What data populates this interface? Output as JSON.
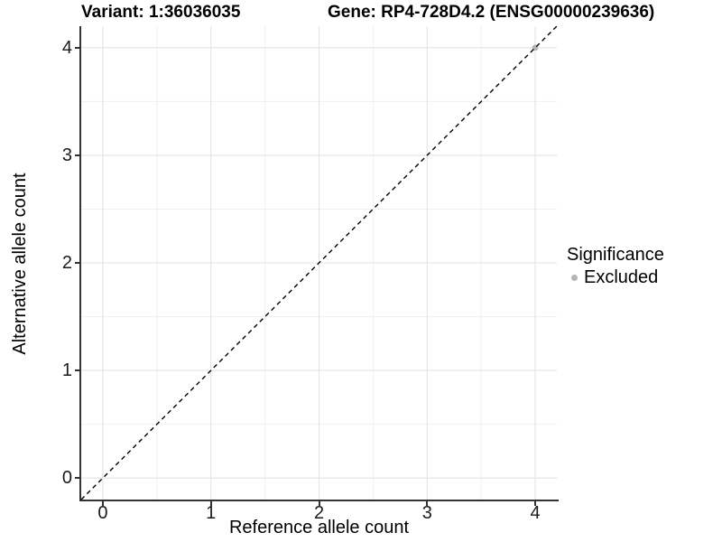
{
  "titles": {
    "variant": "Variant: 1:36036035",
    "gene": "Gene: RP4-728D4.2 (ENSG00000239636)"
  },
  "legend": {
    "title": "Significance",
    "items": [
      {
        "label": "Excluded",
        "color": "#b5b5b5"
      }
    ]
  },
  "chart_data": {
    "type": "scatter",
    "title": "Variant: 1:36036035        Gene: RP4-728D4.2 (ENSG00000239636)",
    "xlabel": "Reference allele count",
    "ylabel": "Alternative allele count",
    "xlim": [
      -0.2,
      4.2
    ],
    "ylim": [
      -0.2,
      4.2
    ],
    "xticks": [
      0,
      1,
      2,
      3,
      4
    ],
    "yticks": [
      0,
      1,
      2,
      3,
      4
    ],
    "minor_xticks": [
      0.5,
      1.5,
      2.5,
      3.5
    ],
    "minor_yticks": [
      0.5,
      1.5,
      2.5,
      3.5
    ],
    "grid": "major+minor",
    "legend_position": "right",
    "legend_title": "Significance",
    "reference_line": {
      "kind": "identity",
      "slope": 1,
      "intercept": 0,
      "style": "dashed",
      "color": "#000000"
    },
    "series": [
      {
        "name": "Excluded",
        "color": "#b5b5b5",
        "points": [
          {
            "x": 4,
            "y": 4
          }
        ]
      }
    ],
    "colors": {
      "grid_major": "#e3e3e3",
      "grid_minor": "#f0f0f0",
      "axis_line": "#333333",
      "excluded_point": "#b5b5b5"
    }
  }
}
